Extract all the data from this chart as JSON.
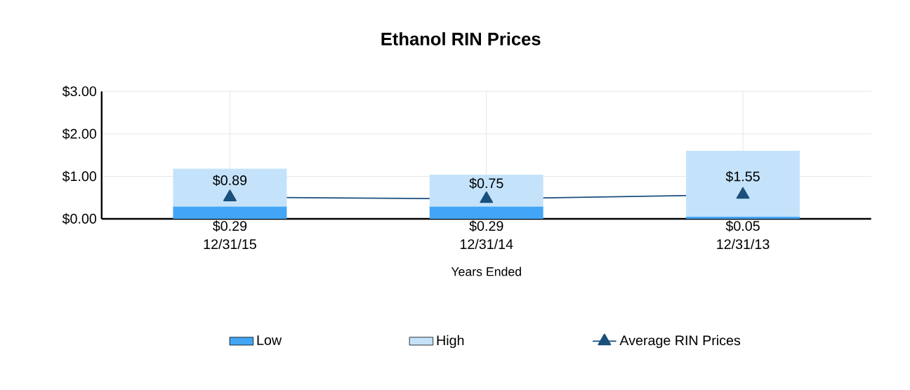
{
  "chart_data": {
    "type": "bar",
    "title": "Ethanol RIN Prices",
    "xlabel": "Years Ended",
    "categories": [
      "12/31/15",
      "12/31/14",
      "12/31/13"
    ],
    "stacked": true,
    "series": [
      {
        "name": "Low",
        "color": "#42a5f5",
        "values": [
          0.29,
          0.29,
          0.05
        ],
        "value_labels": [
          "$0.29",
          "$0.29",
          "$0.05"
        ]
      },
      {
        "name": "High",
        "color": "#c4e3fb",
        "values": [
          0.89,
          0.75,
          1.55
        ],
        "value_labels": [
          "$0.89",
          "$0.75",
          "$1.55"
        ]
      },
      {
        "name": "Average RIN Prices",
        "type": "line",
        "color": "#1b4f7c",
        "values": [
          0.51,
          0.47,
          0.57
        ],
        "marker": "triangle"
      }
    ],
    "ylim": [
      0,
      3
    ],
    "yticks": [
      {
        "value": 0,
        "label": "$0.00"
      },
      {
        "value": 1,
        "label": "$1.00"
      },
      {
        "value": 2,
        "label": "$2.00"
      },
      {
        "value": 3,
        "label": "$3.00"
      }
    ],
    "grid": true,
    "legend": "bottom"
  }
}
